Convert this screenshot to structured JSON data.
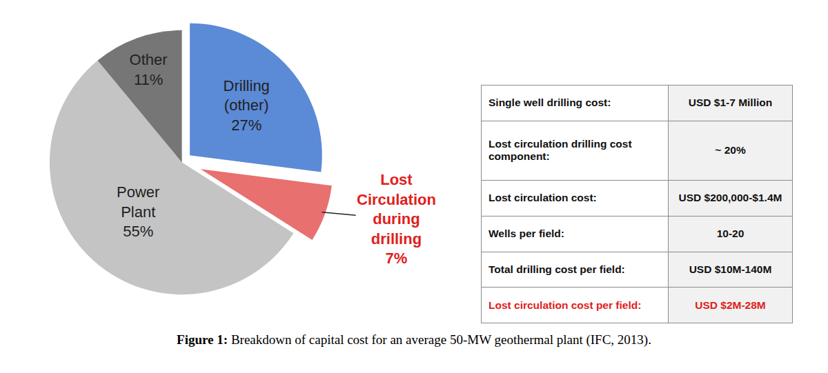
{
  "chart_data": {
    "type": "pie",
    "categories": [
      "Drilling (other)",
      "Lost Circulation during drilling",
      "Power Plant",
      "Other"
    ],
    "values": [
      27,
      7,
      55,
      11
    ],
    "value_labels": [
      "27%",
      "7%",
      "55%",
      "11%"
    ],
    "colors": [
      "#5b8ad6",
      "#e8706f",
      "#c4c4c4",
      "#767676"
    ],
    "data_labels": true
  },
  "table": {
    "rows": [
      [
        "Single well drilling cost:",
        "USD $1-7 Million"
      ],
      [
        "Lost circulation drilling cost component:",
        "~ 20%"
      ],
      [
        "Lost circulation cost:",
        "USD $200,000-$1.4M"
      ],
      [
        "Wells per field:",
        "10-20"
      ],
      [
        "Total drilling cost per field:",
        "USD $10M-140M"
      ],
      [
        "Lost circulation cost per field:",
        "USD $2M-28M"
      ]
    ]
  },
  "caption": {
    "label": "Figure 1:",
    "text": "Breakdown of capital cost for an average 50-MW geothermal plant (IFC, 2013)."
  }
}
